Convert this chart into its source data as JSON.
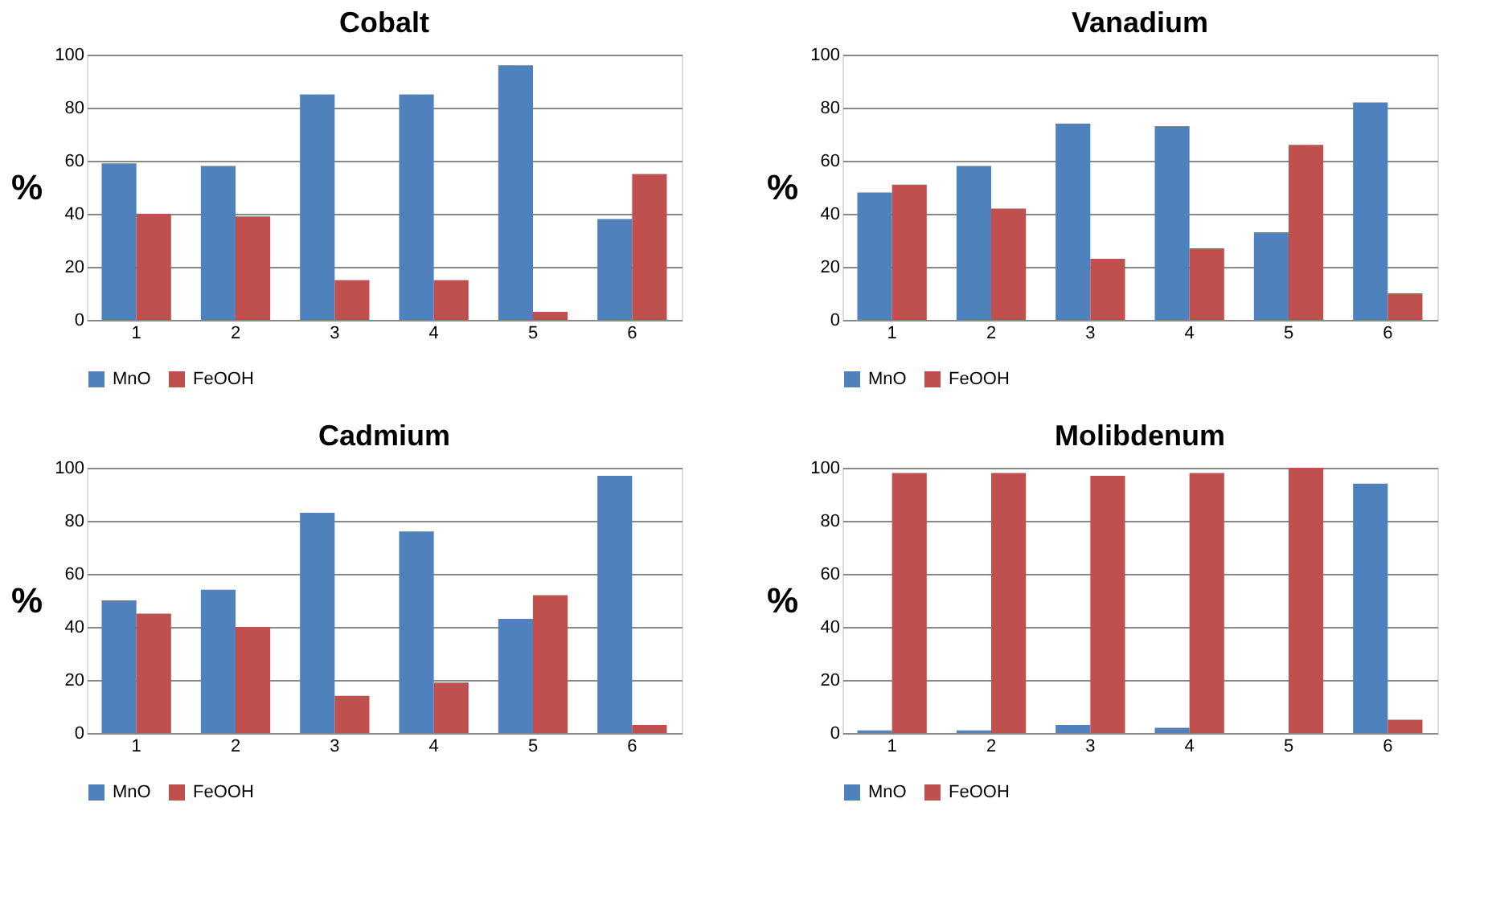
{
  "chart_data": [
    {
      "type": "bar",
      "title": "Cobalt",
      "ylabel": "%",
      "categories": [
        "1",
        "2",
        "3",
        "4",
        "5",
        "6"
      ],
      "ylim": [
        0,
        100
      ],
      "yticks": [
        0,
        20,
        40,
        60,
        80,
        100
      ],
      "grid": "y",
      "legend": "bottom",
      "series": [
        {
          "name": "MnO",
          "color": "#4f81bd",
          "values": [
            59,
            58,
            85,
            85,
            96,
            38
          ]
        },
        {
          "name": "FeOOH",
          "color": "#c0504d",
          "values": [
            40,
            39,
            15,
            15,
            3,
            55
          ]
        }
      ]
    },
    {
      "type": "bar",
      "title": "Vanadium",
      "ylabel": "%",
      "categories": [
        "1",
        "2",
        "3",
        "4",
        "5",
        "6"
      ],
      "ylim": [
        0,
        100
      ],
      "yticks": [
        0,
        20,
        40,
        60,
        80,
        100
      ],
      "grid": "y",
      "legend": "bottom",
      "series": [
        {
          "name": "MnO",
          "color": "#4f81bd",
          "values": [
            48,
            58,
            74,
            73,
            33,
            82
          ]
        },
        {
          "name": "FeOOH",
          "color": "#c0504d",
          "values": [
            51,
            42,
            23,
            27,
            66,
            10
          ]
        }
      ]
    },
    {
      "type": "bar",
      "title": "Cadmium",
      "ylabel": "%",
      "categories": [
        "1",
        "2",
        "3",
        "4",
        "5",
        "6"
      ],
      "ylim": [
        0,
        100
      ],
      "yticks": [
        0,
        20,
        40,
        60,
        80,
        100
      ],
      "grid": "y",
      "legend": "bottom",
      "series": [
        {
          "name": "MnO",
          "color": "#4f81bd",
          "values": [
            50,
            54,
            83,
            76,
            43,
            97
          ]
        },
        {
          "name": "FeOOH",
          "color": "#c0504d",
          "values": [
            45,
            40,
            14,
            19,
            52,
            3
          ]
        }
      ]
    },
    {
      "type": "bar",
      "title": "Molibdenum",
      "ylabel": "%",
      "categories": [
        "1",
        "2",
        "3",
        "4",
        "5",
        "6"
      ],
      "ylim": [
        0,
        100
      ],
      "yticks": [
        0,
        20,
        40,
        60,
        80,
        100
      ],
      "grid": "y",
      "legend": "bottom",
      "series": [
        {
          "name": "MnO",
          "color": "#4f81bd",
          "values": [
            1,
            1,
            3,
            2,
            0,
            94
          ]
        },
        {
          "name": "FeOOH",
          "color": "#c0504d",
          "values": [
            98,
            98,
            97,
            98,
            100,
            5
          ]
        }
      ]
    }
  ]
}
